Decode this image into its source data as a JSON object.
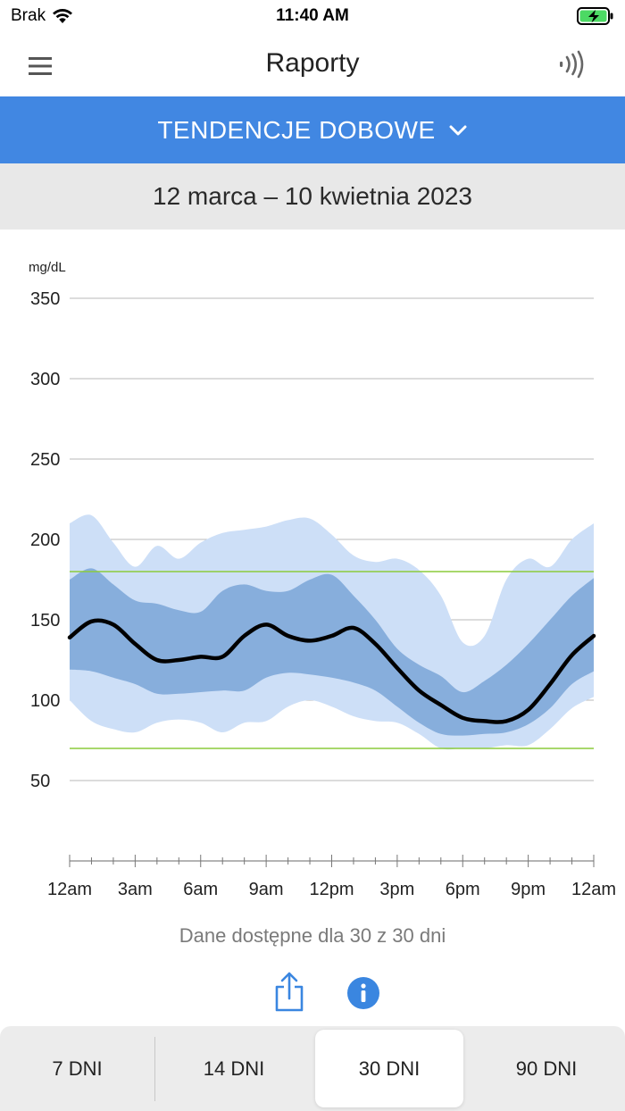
{
  "status_bar": {
    "carrier": "Brak",
    "time": "11:40 AM"
  },
  "nav": {
    "title": "Raporty"
  },
  "report_selector": {
    "label": "TENDENCJE DOBOWE"
  },
  "date_range": "12 marca – 10 kwietnia 2023",
  "chart_data": {
    "type": "area",
    "title": "TENDENCJE DOBOWE",
    "ylabel": "mg/dL",
    "ylim": [
      0,
      350
    ],
    "yticks": [
      50,
      100,
      150,
      200,
      250,
      300,
      350
    ],
    "ytick_labels": [
      "50",
      "100",
      "150",
      "200",
      "250",
      "300",
      "350"
    ],
    "xlim": [
      0,
      24
    ],
    "xtick_labels": [
      "12am",
      "3am",
      "6am",
      "9am",
      "12pm",
      "3pm",
      "6pm",
      "9pm",
      "12am"
    ],
    "target_range": [
      70,
      180
    ],
    "x": [
      0,
      1,
      2,
      3,
      4,
      5,
      6,
      7,
      8,
      9,
      10,
      11,
      12,
      13,
      14,
      15,
      16,
      17,
      18,
      19,
      20,
      21,
      22,
      23,
      24
    ],
    "series": [
      {
        "name": "10-90 percentyl (górny)",
        "values": [
          210,
          215,
          198,
          183,
          196,
          188,
          198,
          204,
          206,
          208,
          212,
          213,
          203,
          190,
          186,
          188,
          181,
          165,
          136,
          140,
          175,
          188,
          183,
          200,
          210
        ]
      },
      {
        "name": "25-75 percentyl (górny)",
        "values": [
          175,
          182,
          172,
          162,
          160,
          156,
          155,
          168,
          172,
          168,
          168,
          175,
          178,
          165,
          150,
          132,
          122,
          115,
          105,
          112,
          122,
          135,
          150,
          165,
          176
        ]
      },
      {
        "name": "Mediana",
        "values": [
          139,
          149,
          147,
          135,
          125,
          125,
          127,
          127,
          140,
          147,
          140,
          137,
          140,
          145,
          135,
          120,
          106,
          97,
          89,
          87,
          87,
          94,
          110,
          128,
          140
        ]
      },
      {
        "name": "25-75 percentyl (dolny)",
        "values": [
          119,
          118,
          114,
          110,
          104,
          104,
          105,
          106,
          106,
          114,
          117,
          116,
          114,
          111,
          106,
          96,
          86,
          79,
          78,
          79,
          80,
          85,
          95,
          110,
          118
        ]
      },
      {
        "name": "10-90 percentyl (dolny)",
        "values": [
          100,
          87,
          82,
          80,
          86,
          88,
          86,
          80,
          86,
          87,
          96,
          100,
          96,
          90,
          87,
          86,
          79,
          70,
          70,
          70,
          72,
          72,
          82,
          95,
          102
        ]
      }
    ],
    "colors": {
      "outer_band": "#cddff7",
      "inner_band": "#87aedc",
      "median": "#000000",
      "target_line": "#8ccc3c",
      "grid": "#b8b8b8"
    }
  },
  "availability_text": "Dane dostępne dla 30 z 30 dni",
  "period_tabs": [
    {
      "label": "7 DNI"
    },
    {
      "label": "14 DNI"
    },
    {
      "label": "30 DNI"
    },
    {
      "label": "90 DNI"
    }
  ],
  "selected_tab": "30 DNI",
  "colors": {
    "accent": "#4187e2",
    "date_bar_bg": "#e8e8e8",
    "tab_bar_bg": "#ececec"
  }
}
